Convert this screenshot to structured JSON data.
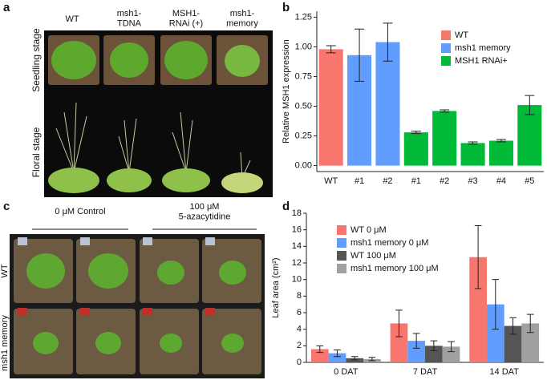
{
  "panel_labels": [
    "a",
    "b",
    "c",
    "d"
  ],
  "photo_a": {
    "columns": [
      "WT",
      "msh1-\nTDNA",
      "MSH1-\nRNAi (+)",
      "msh1-\nmemory"
    ],
    "rows": [
      "Seedling stage",
      "Floral stage"
    ]
  },
  "photo_c": {
    "columns": [
      "0 μM Control",
      "100 μM\n5-azacytidine"
    ],
    "rows": [
      "WT",
      "msh1 memory"
    ]
  },
  "chart_data": [
    {
      "type": "bar",
      "y_label": "Relative MSH1 expression",
      "categories": [
        "WT",
        "#1",
        "#2",
        "#1",
        "#2",
        "#3",
        "#4",
        "#5"
      ],
      "series": [
        {
          "name": "WT",
          "color": "#f8766d",
          "values": [
            0.98,
            null,
            null,
            null,
            null,
            null,
            null,
            null
          ],
          "errors": [
            0.03,
            null,
            null,
            null,
            null,
            null,
            null,
            null
          ]
        },
        {
          "name": "msh1 memory",
          "color": "#619cff",
          "values": [
            null,
            0.93,
            1.04,
            null,
            null,
            null,
            null,
            null
          ],
          "errors": [
            null,
            0.22,
            0.16,
            null,
            null,
            null,
            null,
            null
          ]
        },
        {
          "name": "MSH1 RNAi+",
          "color": "#00ba38",
          "values": [
            null,
            null,
            null,
            0.28,
            0.46,
            0.19,
            0.21,
            0.51
          ],
          "errors": [
            null,
            null,
            null,
            0.01,
            0.01,
            0.01,
            0.01,
            0.08
          ]
        }
      ],
      "ylim": [
        -0.05,
        1.3
      ],
      "yticks": [
        {
          "value": 0,
          "label": "0.00"
        },
        {
          "value": 0.25,
          "label": "0.25"
        },
        {
          "value": 0.5,
          "label": "0.50"
        },
        {
          "value": 0.75,
          "label": "0.75"
        },
        {
          "value": 1,
          "label": "1.00"
        },
        {
          "value": 1.25,
          "label": "1.25"
        }
      ],
      "legend": "top-right"
    },
    {
      "type": "bar",
      "y_label": "Leaf area (cm²)",
      "categories": [
        "0 DAT",
        "7 DAT",
        "14 DAT"
      ],
      "series": [
        {
          "name": "WT 0 μM",
          "color": "#f8766d",
          "values": [
            1.6,
            4.7,
            12.7
          ],
          "errors": [
            0.4,
            1.6,
            3.8
          ]
        },
        {
          "name": "msh1 memory 0 μM",
          "color": "#619cff",
          "values": [
            1.1,
            2.6,
            7.0
          ],
          "errors": [
            0.4,
            0.9,
            3.0
          ]
        },
        {
          "name": "WT 100 μM",
          "color": "#555555",
          "values": [
            0.5,
            2.0,
            4.4
          ],
          "errors": [
            0.2,
            0.6,
            1.0
          ]
        },
        {
          "name": "msh1 memory 100 μM",
          "color": "#a0a0a0",
          "values": [
            0.4,
            1.9,
            4.7
          ],
          "errors": [
            0.2,
            0.6,
            1.1
          ]
        }
      ],
      "ylim": [
        0,
        18
      ],
      "yticks": [
        0,
        2,
        4,
        6,
        8,
        10,
        12,
        14,
        16,
        18
      ],
      "legend": "top-left"
    }
  ]
}
